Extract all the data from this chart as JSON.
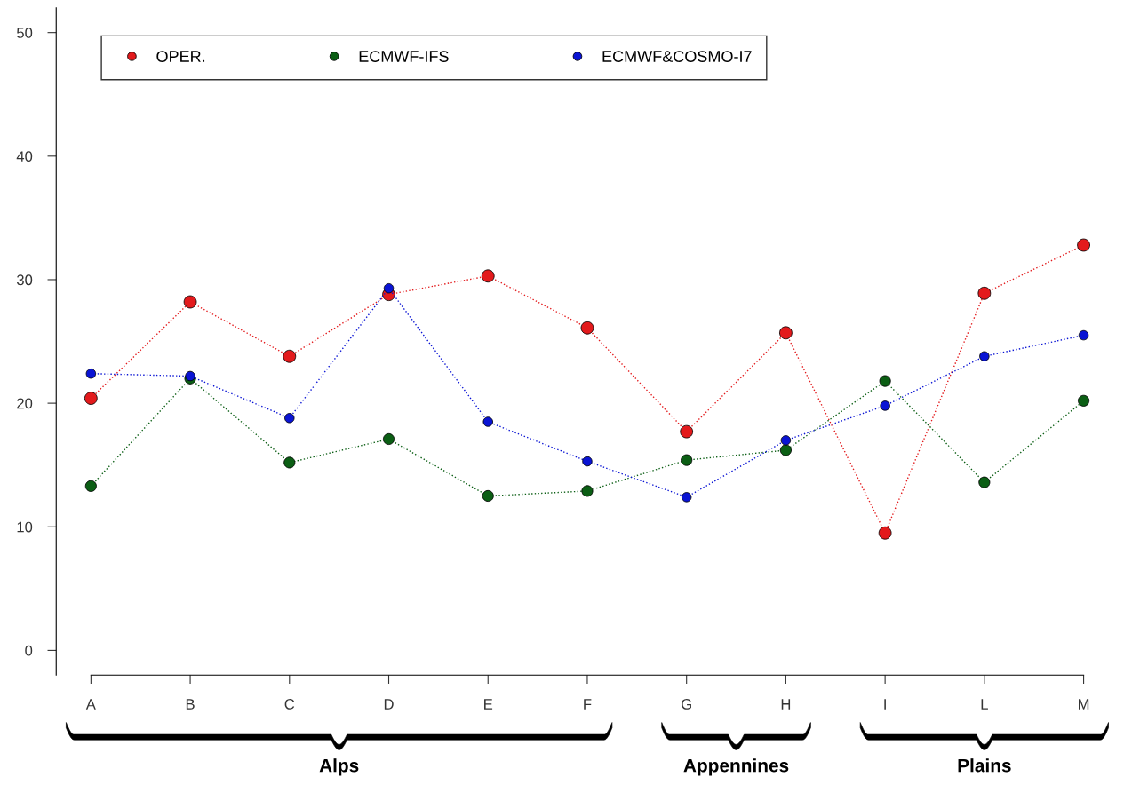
{
  "chart_data": {
    "type": "line",
    "categories": [
      "A",
      "B",
      "C",
      "D",
      "E",
      "F",
      "G",
      "H",
      "I",
      "L",
      "M"
    ],
    "series": [
      {
        "name": "OPER.",
        "color": "#e31a1c",
        "values": [
          20.4,
          28.2,
          23.8,
          28.8,
          30.3,
          26.1,
          17.7,
          25.7,
          9.5,
          28.9,
          32.8
        ]
      },
      {
        "name": "ECMWF-IFS",
        "color": "#0b5e14",
        "values": [
          13.3,
          22.0,
          15.2,
          17.1,
          12.5,
          12.9,
          15.4,
          16.2,
          21.8,
          13.6,
          20.2
        ]
      },
      {
        "name": "ECMWF&COSMO-I7",
        "color": "#0a14d4",
        "values": [
          22.4,
          22.2,
          18.8,
          29.3,
          18.5,
          15.3,
          12.4,
          17.0,
          19.8,
          23.8,
          25.5
        ]
      }
    ],
    "ylim": [
      -2,
      52
    ],
    "yticks": [
      0,
      10,
      20,
      30,
      40,
      50
    ],
    "annotations": [
      "Alps",
      "Appennines",
      "Plains"
    ],
    "grid": false,
    "legend": "top left",
    "marker": "circle",
    "line_style": "dotted"
  }
}
